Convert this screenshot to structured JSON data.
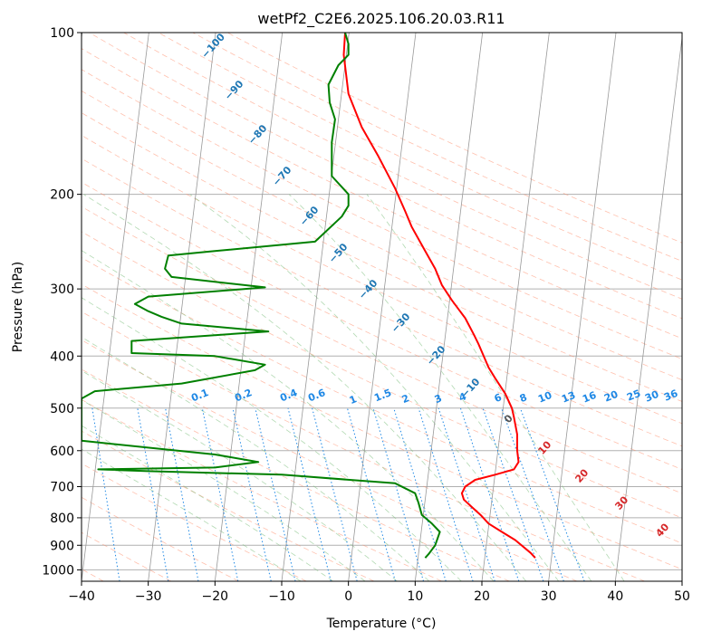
{
  "chart_data": {
    "type": "line",
    "title": "wetPf2_C2E6.2025.106.20.03.R11",
    "xlabel": "Temperature (°C)",
    "ylabel": "Pressure (hPa)",
    "xlim": [
      -40,
      50
    ],
    "ylim": [
      1050,
      100
    ],
    "y_scale": "log",
    "x_ticks": [
      -40,
      -30,
      -20,
      -10,
      0,
      10,
      20,
      30,
      40,
      50
    ],
    "x_tick_labels": [
      "−40",
      "−30",
      "−20",
      "−10",
      "0",
      "10",
      "20",
      "30",
      "40",
      "50"
    ],
    "y_ticks": [
      1000,
      900,
      800,
      700,
      600,
      500,
      400,
      300,
      200,
      100
    ],
    "y_tick_labels": [
      "1000",
      "900",
      "800",
      "700",
      "600",
      "500",
      "400",
      "300",
      "200",
      "100"
    ],
    "grid": true,
    "colors": {
      "temperature": "#ff0000",
      "dewpoint": "#008000",
      "isotherm": "#999999",
      "dry_adiabat": "#ff8c69",
      "moist_adiabat": "#7fbf7f",
      "mixing_ratio": "#1e88e5",
      "isotherm_label": "#1f77b4",
      "dry_adiabat_label": "#d62728"
    },
    "series": [
      {
        "role": "temperature",
        "points": [
          [
            28.0,
            950
          ],
          [
            27.3,
            930
          ],
          [
            25.0,
            880
          ],
          [
            23.0,
            850
          ],
          [
            21.0,
            820
          ],
          [
            19.8,
            790
          ],
          [
            18.3,
            760
          ],
          [
            17.3,
            740
          ],
          [
            17.0,
            720
          ],
          [
            17.5,
            700
          ],
          [
            19.0,
            680
          ],
          [
            22.0,
            665
          ],
          [
            24.8,
            650
          ],
          [
            25.5,
            630
          ],
          [
            25.3,
            600
          ],
          [
            25.3,
            560
          ],
          [
            24.8,
            520
          ],
          [
            24.5,
            500
          ],
          [
            23.5,
            470
          ],
          [
            22.0,
            440
          ],
          [
            21.0,
            420
          ],
          [
            19.5,
            380
          ],
          [
            18.8,
            365
          ],
          [
            17.5,
            340
          ],
          [
            15.5,
            315
          ],
          [
            14.0,
            295
          ],
          [
            13.0,
            275
          ],
          [
            11.5,
            255
          ],
          [
            9.5,
            230
          ],
          [
            8.5,
            215
          ],
          [
            7.0,
            195
          ],
          [
            4.5,
            170
          ],
          [
            2.0,
            150
          ],
          [
            0.0,
            130
          ],
          [
            -0.7,
            110
          ],
          [
            -0.5,
            100
          ]
        ]
      },
      {
        "role": "dewpoint",
        "points": [
          [
            11.5,
            950
          ],
          [
            12.0,
            935
          ],
          [
            13.0,
            900
          ],
          [
            13.7,
            850
          ],
          [
            12.5,
            820
          ],
          [
            11.0,
            790
          ],
          [
            10.5,
            750
          ],
          [
            10.0,
            720
          ],
          [
            7.0,
            690
          ],
          [
            -10.0,
            665
          ],
          [
            -30.0,
            655
          ],
          [
            -37.5,
            650
          ],
          [
            -20.0,
            645
          ],
          [
            -13.5,
            630
          ],
          [
            -20.0,
            610
          ],
          [
            -40.0,
            575
          ],
          [
            -40.0,
            480
          ],
          [
            -38.0,
            465
          ],
          [
            -25.0,
            450
          ],
          [
            -14.0,
            425
          ],
          [
            -12.5,
            415
          ],
          [
            -20.0,
            400
          ],
          [
            -32.5,
            395
          ],
          [
            -32.5,
            375
          ],
          [
            -12.0,
            360
          ],
          [
            -25.0,
            348
          ],
          [
            -28.0,
            338
          ],
          [
            -30.0,
            330
          ],
          [
            -32.0,
            320
          ],
          [
            -30.0,
            310
          ],
          [
            -12.5,
            298
          ],
          [
            -26.5,
            285
          ],
          [
            -27.5,
            275
          ],
          [
            -27.0,
            260
          ],
          [
            -20.0,
            255
          ],
          [
            -5.0,
            245
          ],
          [
            -1.0,
            220
          ],
          [
            0.0,
            210
          ],
          [
            0.0,
            200
          ],
          [
            -2.5,
            185
          ],
          [
            -2.5,
            160
          ],
          [
            -2.0,
            145
          ],
          [
            -2.8,
            135
          ],
          [
            -3.0,
            125
          ],
          [
            -1.5,
            115
          ],
          [
            0.0,
            110
          ],
          [
            0.0,
            105
          ],
          [
            -0.5,
            100
          ]
        ]
      }
    ],
    "isotherm_labels": [
      "−100",
      "−90",
      "−80",
      "−70",
      "−60",
      "−50",
      "−40",
      "−30",
      "−20",
      "−10",
      "0",
      "10",
      "20",
      "30",
      "40"
    ],
    "mixing_ratio_labels": [
      "0.1",
      "0.2",
      "0.4",
      "0.6",
      "1",
      "1.5",
      "2",
      "3",
      "4",
      "6",
      "8",
      "10",
      "13",
      "16",
      "20",
      "25",
      "30",
      "36"
    ]
  }
}
